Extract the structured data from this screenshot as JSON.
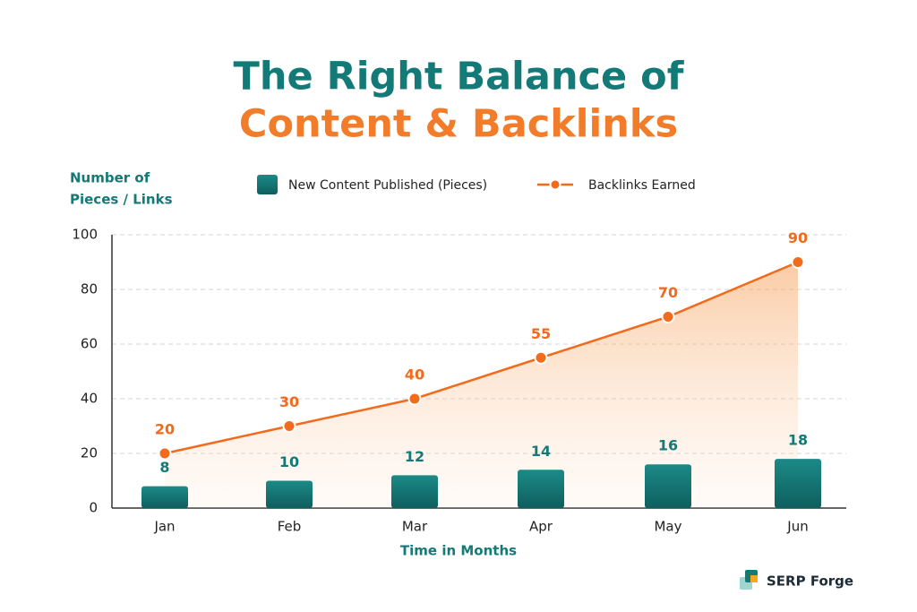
{
  "brand": "SERP Forge",
  "chart_data": {
    "type": "bar_line",
    "title": [
      "The Right Balance of",
      "Content & Backlinks"
    ],
    "ylabel": [
      "Number of",
      "Pieces / Links"
    ],
    "xlabel": "Time in Months",
    "categories": [
      "Jan",
      "Feb",
      "Mar",
      "Apr",
      "May",
      "Jun"
    ],
    "series": [
      {
        "name": "New Content Published (Pieces)",
        "type": "bar",
        "color": "#137a78",
        "values": [
          8,
          10,
          12,
          14,
          16,
          18
        ]
      },
      {
        "name": "Backlinks Earned",
        "type": "line",
        "color": "#f26a1b",
        "values": [
          20,
          30,
          40,
          55,
          70,
          90
        ]
      }
    ],
    "ylim": [
      0,
      100
    ],
    "yticks": [
      0,
      20,
      40,
      60,
      80,
      100
    ],
    "grid": true
  }
}
